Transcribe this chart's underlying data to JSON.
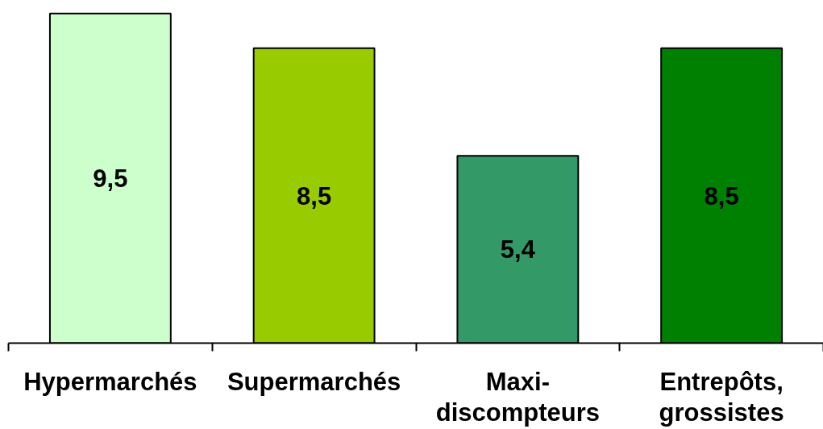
{
  "chart_data": {
    "type": "bar",
    "categories": [
      "Hypermarchés",
      "Supermarchés",
      "Maxi-discompteurs",
      "Entrepôts, grossistes"
    ],
    "values": [
      9.5,
      8.5,
      5.4,
      8.5
    ],
    "colors": [
      "#ccffcc",
      "#99cc00",
      "#339966",
      "#008000"
    ],
    "value_labels": [
      "9,5",
      "8,5",
      "5,4",
      "8,5"
    ]
  }
}
